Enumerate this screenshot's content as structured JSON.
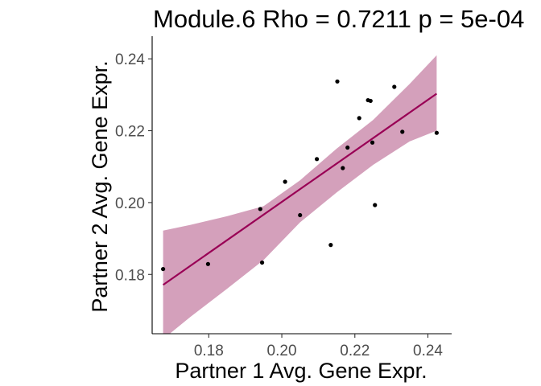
{
  "chart_data": {
    "type": "scatter",
    "title": "Module.6 Rho = 0.7211 p = 5e-04",
    "xlabel": "Partner 1 Avg. Gene Expr.",
    "ylabel": "Partner 2 Avg. Gene Expr.",
    "xlim": [
      0.1645,
      0.2465
    ],
    "ylim": [
      0.1635,
      0.2463
    ],
    "xticks": [
      0.18,
      0.2,
      0.22,
      0.24
    ],
    "yticks": [
      0.18,
      0.2,
      0.22,
      0.24
    ],
    "xtick_labels": [
      "0.18",
      "0.20",
      "0.22",
      "0.24"
    ],
    "ytick_labels": [
      "0.18",
      "0.20",
      "0.22",
      "0.24"
    ],
    "grid": false,
    "points": [
      {
        "x": 0.1675,
        "y": 0.1815
      },
      {
        "x": 0.1798,
        "y": 0.1829
      },
      {
        "x": 0.1941,
        "y": 0.1982
      },
      {
        "x": 0.1946,
        "y": 0.1833
      },
      {
        "x": 0.2009,
        "y": 0.2058
      },
      {
        "x": 0.205,
        "y": 0.1965
      },
      {
        "x": 0.2096,
        "y": 0.2121
      },
      {
        "x": 0.2134,
        "y": 0.1882
      },
      {
        "x": 0.2152,
        "y": 0.2337
      },
      {
        "x": 0.2167,
        "y": 0.2096
      },
      {
        "x": 0.218,
        "y": 0.2153
      },
      {
        "x": 0.2212,
        "y": 0.2235
      },
      {
        "x": 0.2236,
        "y": 0.2285
      },
      {
        "x": 0.2243,
        "y": 0.2283
      },
      {
        "x": 0.2248,
        "y": 0.2167
      },
      {
        "x": 0.2255,
        "y": 0.1993
      },
      {
        "x": 0.2308,
        "y": 0.2322
      },
      {
        "x": 0.233,
        "y": 0.2197
      },
      {
        "x": 0.2424,
        "y": 0.2194
      }
    ],
    "fit_line": {
      "x": [
        0.1675,
        0.2424
      ],
      "y": [
        0.1771,
        0.2303
      ],
      "color": "#990055"
    },
    "confidence_band": {
      "color": "#d4a0bb",
      "x": [
        0.1675,
        0.175,
        0.185,
        0.195,
        0.205,
        0.215,
        0.225,
        0.235,
        0.2424
      ],
      "upper": [
        0.1922,
        0.1938,
        0.1962,
        0.199,
        0.2062,
        0.215,
        0.223,
        0.233,
        0.241
      ],
      "lower": [
        0.162,
        0.1682,
        0.176,
        0.184,
        0.1945,
        0.2028,
        0.2105,
        0.217,
        0.22
      ]
    }
  }
}
